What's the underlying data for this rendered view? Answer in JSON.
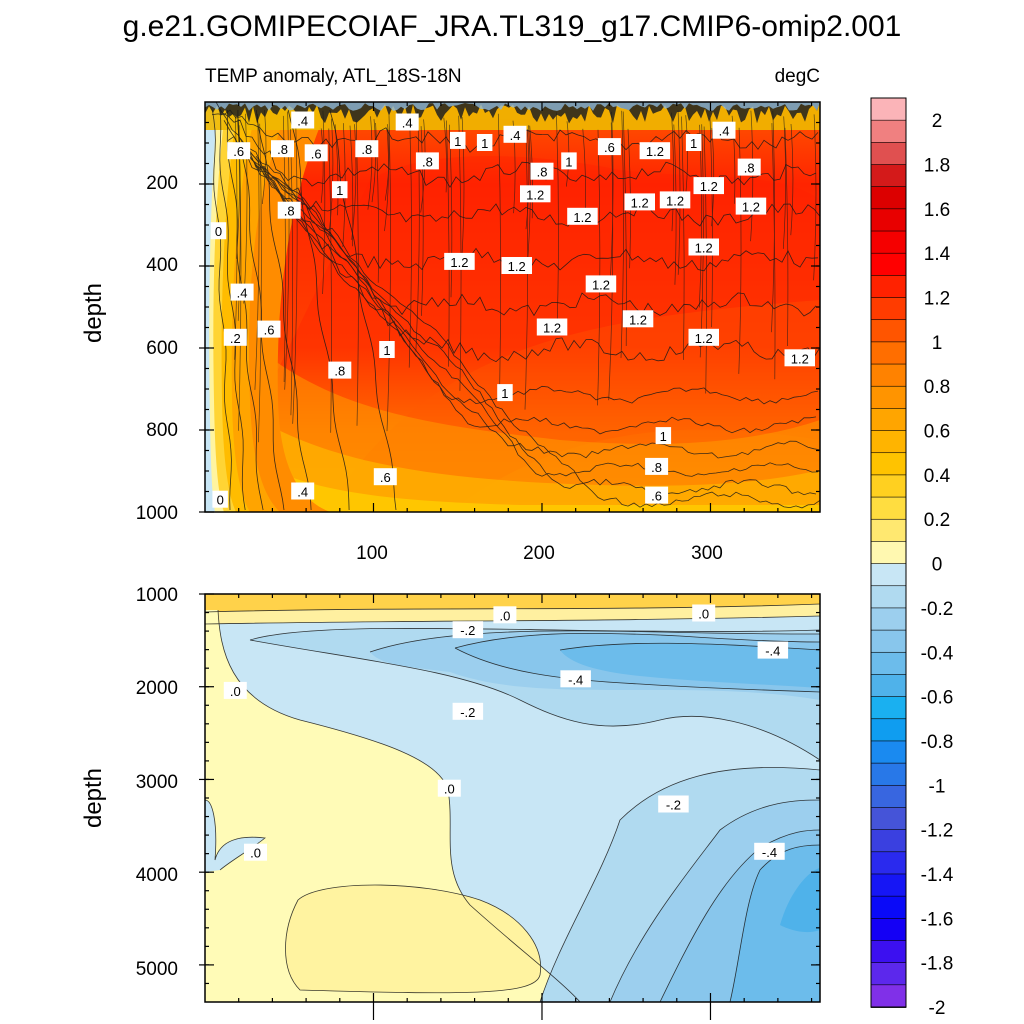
{
  "figure": {
    "title": "g.e21.GOMIPECOIAF_JRA.TL319_g17.CMIP6-omip2.001",
    "subtitle_left": "TEMP anomaly, ATL_18S-18N",
    "subtitle_right": "degC"
  },
  "colorbar": {
    "levels": [
      2.2,
      2.0,
      1.9,
      1.8,
      1.7,
      1.6,
      1.5,
      1.4,
      1.3,
      1.2,
      1.1,
      1.0,
      0.9,
      0.8,
      0.7,
      0.6,
      0.5,
      0.4,
      0.3,
      0.2,
      0.1,
      0.0,
      -0.1,
      -0.2,
      -0.3,
      -0.4,
      -0.5,
      -0.6,
      -0.7,
      -0.8,
      -0.9,
      -1.0,
      -1.1,
      -1.2,
      -1.3,
      -1.4,
      -1.5,
      -1.6,
      -1.7,
      -1.8,
      -1.9,
      -2.0
    ],
    "colors": [
      "#fbb4b8",
      "#f08080",
      "#e05050",
      "#d41a1a",
      "#dc0000",
      "#e80000",
      "#f50000",
      "#ff0000",
      "#ff2200",
      "#ff3c00",
      "#ff5500",
      "#ff6e00",
      "#ff8200",
      "#ff9400",
      "#ffa500",
      "#ffb400",
      "#ffc300",
      "#ffd020",
      "#ffdd40",
      "#ffe870",
      "#fff8b0",
      "#c8e6f5",
      "#b0daf0",
      "#9ccfee",
      "#88c6ec",
      "#6cbceb",
      "#4fb2ea",
      "#1ab0f0",
      "#0f9df0",
      "#1a8af0",
      "#2878e8",
      "#3866e0",
      "#4554d8",
      "#3a40e0",
      "#2a2aee",
      "#1616f5",
      "#0a0af8",
      "#1400f5",
      "#3c10f0",
      "#5c28ec",
      "#8030e8"
    ],
    "labels": [
      "2",
      "1.8",
      "1.6",
      "1.4",
      "1.2",
      "1",
      "0.8",
      "0.6",
      "0.4",
      "0.2",
      "0",
      "-0.2",
      "-0.4",
      "-0.6",
      "-0.8",
      "-1",
      "-1.2",
      "-1.4",
      "-1.6",
      "-1.8",
      "-2"
    ]
  },
  "upper_panel": {
    "ylabel": "depth",
    "y_ticks": [
      "200",
      "400",
      "600",
      "800",
      "1000"
    ],
    "x_ticks": [
      "100",
      "200",
      "300"
    ]
  },
  "lower_panel": {
    "ylabel": "depth",
    "y_ticks": [
      "1000",
      "2000",
      "3000",
      "4000",
      "5000"
    ]
  },
  "chart_data": {
    "type": "heatmap",
    "title": "g.e21.GOMIPECOIAF_JRA.TL319_g17.CMIP6-omip2.001",
    "subtitle": "TEMP anomaly, ATL_18S-18N",
    "units": "degC",
    "x_range": [
      0,
      365
    ],
    "x_ticks": [
      100,
      200,
      300
    ],
    "panels": [
      {
        "name": "upper",
        "ylabel": "depth",
        "y_range": [
          0,
          1000
        ],
        "y_ticks": [
          200,
          400,
          600,
          800,
          1000
        ],
        "contour_labels": [
          {
            "text": ".4",
            "x": 58,
            "y": 45
          },
          {
            "text": ".4",
            "x": 120,
            "y": 50
          },
          {
            "text": ".4",
            "x": 184,
            "y": 80
          },
          {
            "text": ".4",
            "x": 308,
            "y": 70
          },
          {
            "text": ".6",
            "x": 20,
            "y": 120
          },
          {
            "text": ".8",
            "x": 46,
            "y": 115
          },
          {
            "text": ".6",
            "x": 66,
            "y": 125
          },
          {
            "text": ".8",
            "x": 96,
            "y": 115
          },
          {
            "text": ".8",
            "x": 132,
            "y": 145
          },
          {
            "text": "1",
            "x": 150,
            "y": 95
          },
          {
            "text": "1",
            "x": 166,
            "y": 100
          },
          {
            "text": ".6",
            "x": 240,
            "y": 110
          },
          {
            "text": "1.2",
            "x": 267,
            "y": 120
          },
          {
            "text": "1",
            "x": 290,
            "y": 100
          },
          {
            "text": "1",
            "x": 216,
            "y": 145
          },
          {
            "text": ".8",
            "x": 200,
            "y": 170
          },
          {
            "text": ".8",
            "x": 323,
            "y": 160
          },
          {
            "text": "1",
            "x": 80,
            "y": 215
          },
          {
            "text": ".8",
            "x": 50,
            "y": 265
          },
          {
            "text": "1.2",
            "x": 196,
            "y": 225
          },
          {
            "text": "1.2",
            "x": 224,
            "y": 280
          },
          {
            "text": "1.2",
            "x": 258,
            "y": 245
          },
          {
            "text": "1.2",
            "x": 279,
            "y": 240
          },
          {
            "text": "1.2",
            "x": 299,
            "y": 205
          },
          {
            "text": "1.2",
            "x": 324,
            "y": 255
          },
          {
            "text": "1.2",
            "x": 151,
            "y": 390
          },
          {
            "text": "1.2",
            "x": 185,
            "y": 400
          },
          {
            "text": "1.2",
            "x": 235,
            "y": 445
          },
          {
            "text": "1.2",
            "x": 296,
            "y": 355
          },
          {
            "text": "0",
            "x": 8,
            "y": 315
          },
          {
            "text": ".4",
            "x": 22,
            "y": 465
          },
          {
            "text": ".2",
            "x": 18,
            "y": 575
          },
          {
            "text": ".6",
            "x": 38,
            "y": 555
          },
          {
            "text": "1",
            "x": 108,
            "y": 605
          },
          {
            "text": "1.2",
            "x": 206,
            "y": 550
          },
          {
            "text": "1.2",
            "x": 257,
            "y": 530
          },
          {
            "text": "1.2",
            "x": 296,
            "y": 575
          },
          {
            "text": "1.2",
            "x": 353,
            "y": 625
          },
          {
            "text": ".8",
            "x": 80,
            "y": 655
          },
          {
            "text": "1",
            "x": 178,
            "y": 710
          },
          {
            "text": "1",
            "x": 272,
            "y": 815
          },
          {
            "text": ".8",
            "x": 268,
            "y": 890
          },
          {
            "text": ".6",
            "x": 107,
            "y": 915
          },
          {
            "text": ".4",
            "x": 58,
            "y": 950
          },
          {
            "text": ".6",
            "x": 268,
            "y": 960
          },
          {
            "text": "0",
            "x": 9,
            "y": 970
          }
        ]
      },
      {
        "name": "lower",
        "ylabel": "depth",
        "y_range": [
          1000,
          5400
        ],
        "y_ticks": [
          1000,
          2000,
          3000,
          4000,
          5000
        ],
        "contour_labels": [
          {
            "text": ".0",
            "x": 178,
            "y": 1230
          },
          {
            "text": ".0",
            "x": 296,
            "y": 1210
          },
          {
            "text": "-.2",
            "x": 156,
            "y": 1390
          },
          {
            "text": "-.4",
            "x": 337,
            "y": 1610
          },
          {
            "text": "-.4",
            "x": 220,
            "y": 1920
          },
          {
            "text": ".0",
            "x": 18,
            "y": 2045
          },
          {
            "text": "-.2",
            "x": 156,
            "y": 2270
          },
          {
            "text": ".0",
            "x": 145,
            "y": 3100
          },
          {
            "text": "-.2",
            "x": 278,
            "y": 3270
          },
          {
            "text": ".0",
            "x": 30,
            "y": 3790
          },
          {
            "text": "-.4",
            "x": 335,
            "y": 3780
          }
        ]
      }
    ]
  }
}
